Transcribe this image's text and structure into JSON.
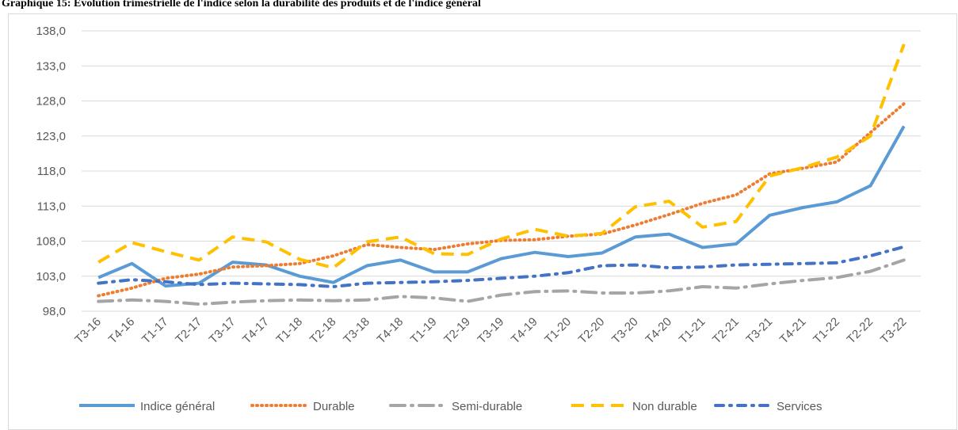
{
  "chart_data": {
    "type": "line",
    "title": "Graphique 15: Evolution trimestrielle de l'indice selon la durabilité des produits et de l'indice général",
    "categories": [
      "T3-16",
      "T4-16",
      "T1-17",
      "T2-17",
      "T3-17",
      "T4-17",
      "T1-18",
      "T2-18",
      "T3-18",
      "T4-18",
      "T1-19",
      "T2-19",
      "T3-19",
      "T4-19",
      "T1-20",
      "T2-20",
      "T3-20",
      "T4-20",
      "T1-21",
      "T2-21",
      "T3-21",
      "T4-21",
      "T1-22",
      "T2-22",
      "T3-22"
    ],
    "series": [
      {
        "name": "Indice général",
        "color": "#5b9bd5",
        "style": "solid",
        "values": [
          102.8,
          104.8,
          101.6,
          102.0,
          105.0,
          104.6,
          103.0,
          102.1,
          104.5,
          105.3,
          103.6,
          103.6,
          105.5,
          106.4,
          105.8,
          106.3,
          108.6,
          109.0,
          107.1,
          107.6,
          111.7,
          112.8,
          113.6,
          115.9,
          124.4
        ]
      },
      {
        "name": "Durable",
        "color": "#ed7d31",
        "style": "dotted",
        "values": [
          100.2,
          101.3,
          102.7,
          103.3,
          104.3,
          104.5,
          104.8,
          105.9,
          107.5,
          107.1,
          106.8,
          107.6,
          108.1,
          108.2,
          108.7,
          109.0,
          110.3,
          111.8,
          113.4,
          114.6,
          117.6,
          118.4,
          119.3,
          123.5,
          127.6
        ]
      },
      {
        "name": "Semi-durable",
        "color": "#a5a5a5",
        "style": "longdashdot",
        "values": [
          99.4,
          99.6,
          99.4,
          99.0,
          99.3,
          99.5,
          99.6,
          99.5,
          99.6,
          100.1,
          99.9,
          99.4,
          100.3,
          100.8,
          100.9,
          100.6,
          100.6,
          100.9,
          101.5,
          101.3,
          101.9,
          102.4,
          102.8,
          103.7,
          105.3
        ]
      },
      {
        "name": "Non durable",
        "color": "#ffc000",
        "style": "longdash",
        "values": [
          105.0,
          107.8,
          106.5,
          105.3,
          108.6,
          107.9,
          105.4,
          104.2,
          107.9,
          108.6,
          106.2,
          106.1,
          108.3,
          109.7,
          108.7,
          109.1,
          112.9,
          113.7,
          110.0,
          110.8,
          117.3,
          118.5,
          120.0,
          123.0,
          136.1
        ]
      },
      {
        "name": "Services",
        "color": "#4472c4",
        "style": "dashdot",
        "values": [
          102.0,
          102.5,
          102.2,
          101.8,
          102.0,
          101.9,
          101.8,
          101.5,
          102.0,
          102.1,
          102.2,
          102.4,
          102.7,
          103.0,
          103.5,
          104.5,
          104.6,
          104.2,
          104.3,
          104.6,
          104.7,
          104.8,
          104.9,
          105.9,
          107.2
        ]
      }
    ],
    "ylim": [
      98,
      138
    ],
    "yticks": [
      {
        "value": 98,
        "label": "98,0"
      },
      {
        "value": 103,
        "label": "103,0"
      },
      {
        "value": 108,
        "label": "108,0"
      },
      {
        "value": 113,
        "label": "113,0"
      },
      {
        "value": 118,
        "label": "118,0"
      },
      {
        "value": 123,
        "label": "123,0"
      },
      {
        "value": 128,
        "label": "128,0"
      },
      {
        "value": 133,
        "label": "133,0"
      },
      {
        "value": 138,
        "label": "138,0"
      }
    ],
    "grid": true,
    "legend": "bottom"
  }
}
